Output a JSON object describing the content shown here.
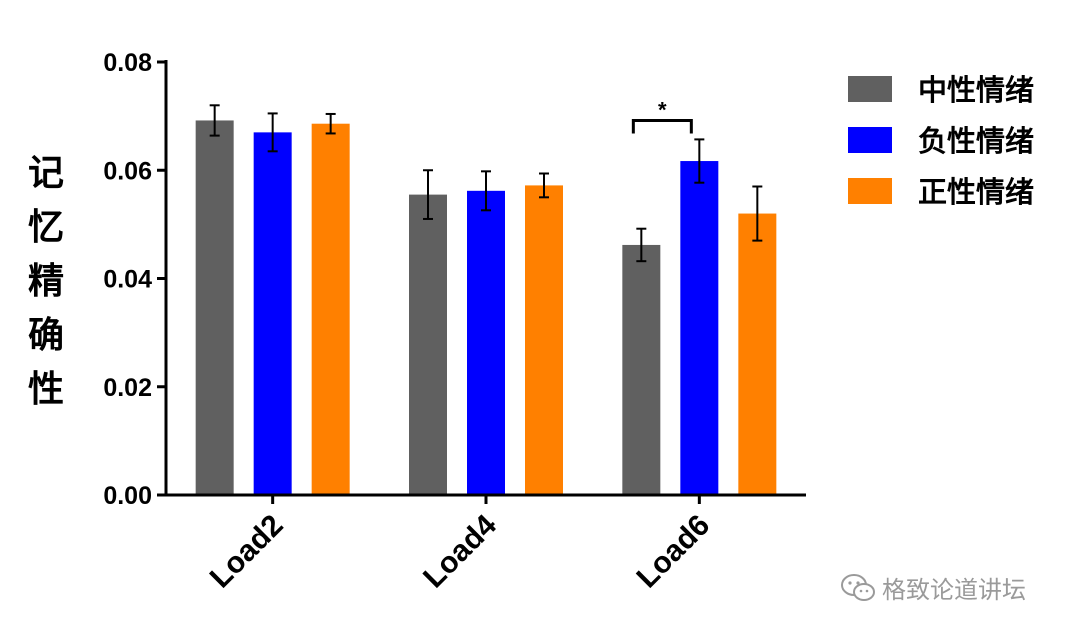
{
  "chart_data": {
    "type": "bar",
    "ylabel": "记忆精确性",
    "xlabel": "",
    "ylim": [
      0,
      0.08
    ],
    "yticks": [
      "0.00",
      "0.02",
      "0.04",
      "0.06",
      "0.08"
    ],
    "categories": [
      "Load2",
      "Load4",
      "Load6"
    ],
    "series": [
      {
        "name": "中性情绪",
        "color": "#606060",
        "values": [
          0.0692,
          0.0555,
          0.0462
        ],
        "errors": [
          0.0028,
          0.0045,
          0.003
        ]
      },
      {
        "name": "负性情绪",
        "color": "#0000ff",
        "values": [
          0.067,
          0.0562,
          0.0617
        ],
        "errors": [
          0.0035,
          0.0036,
          0.004
        ]
      },
      {
        "name": "正性情绪",
        "color": "#ff8000",
        "values": [
          0.0686,
          0.0572,
          0.052
        ],
        "errors": [
          0.0018,
          0.0022,
          0.005
        ]
      }
    ],
    "legend_position": "top-right",
    "annotations": [
      {
        "text": "*",
        "category": "Load6",
        "between": [
          "中性情绪",
          "负性情绪"
        ],
        "y": 0.0692
      }
    ]
  },
  "watermark": {
    "text": "格致论道讲坛",
    "icon": "wechat-icon"
  }
}
